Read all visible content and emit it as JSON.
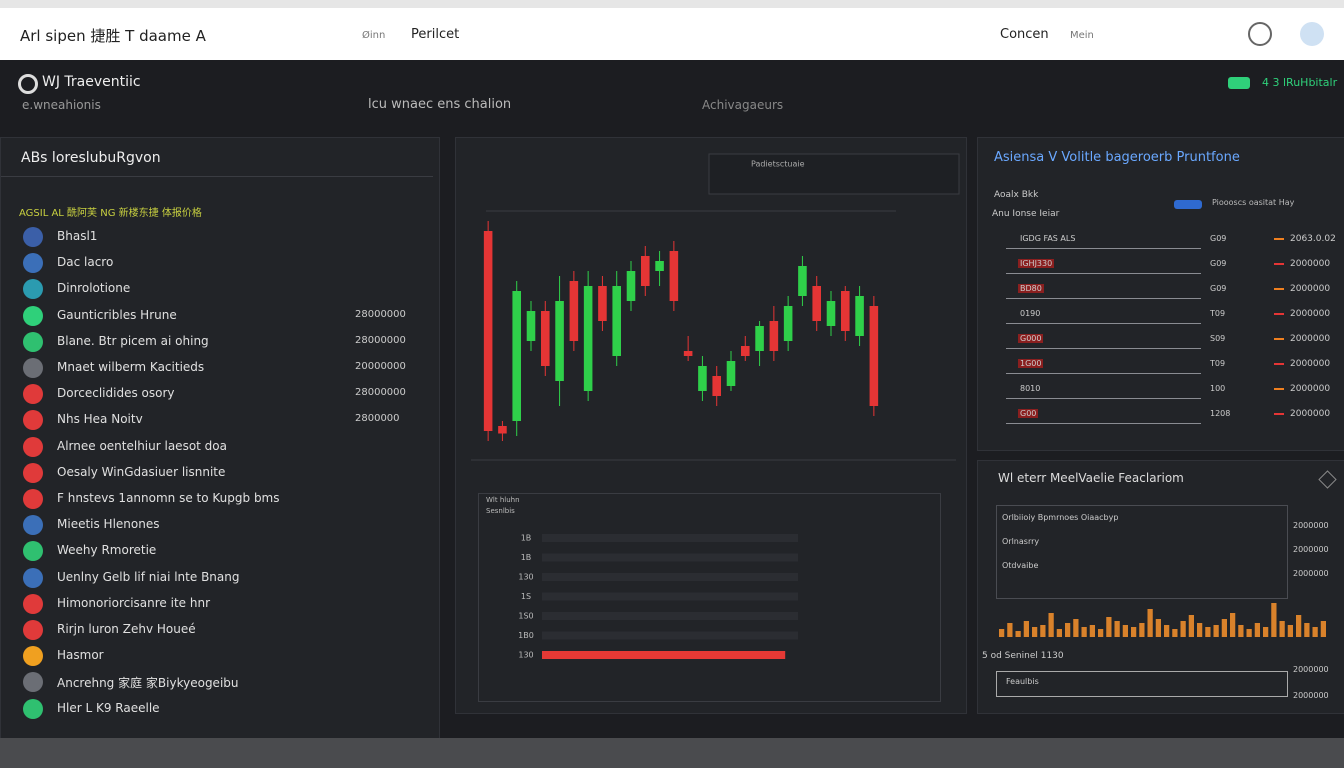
{
  "topbar": {
    "brand": "Arl sipen 捷胜 T daame A",
    "nav": [
      "Øinn",
      "Perilcet"
    ],
    "right": [
      "Concen",
      "Mein"
    ]
  },
  "header": {
    "title": "WJ Traeventiic",
    "subtitle": "e.wneahionis",
    "breadcrumb": "lcu wnaec ens chalion",
    "tab": "Achivagaeurs",
    "status": "4 3 lRuHbitalr"
  },
  "left_panel": {
    "title": "ABs loreslubuRgvon",
    "subtitle": "AGSIL AL 酰阿芙 NG 新楼东捷 体报价格",
    "items": [
      {
        "name": "Bhasl1",
        "color": "#3b5fa8"
      },
      {
        "name": "Dac lacro",
        "color": "#3b6fb8"
      },
      {
        "name": "Dinrolotione",
        "color": "#2b9bb0"
      },
      {
        "name": "Gaunticribles Hrune",
        "value": "28000000",
        "color": "#2fd07a"
      },
      {
        "name": "Blane. Btr picem ai ohing",
        "value": "28000000",
        "color": "#2fc070"
      },
      {
        "name": "Mnaet wilberm Kacitieds",
        "value": "20000000",
        "color": "#6b6e75"
      },
      {
        "name": "Dorceclidides osory",
        "value": "28000000",
        "color": "#e03a3a"
      },
      {
        "name": "Nhs Hea Noitv",
        "value": "2800000",
        "color": "#e03a3a"
      },
      {
        "name": "Alrnee oentelhiur laesot doa",
        "color": "#e03a3a"
      },
      {
        "name": "Oesaly WinGdasiuer lisnnite",
        "color": "#e03a3a"
      },
      {
        "name": "F hnstevs 1annomn se to Kupgb bms",
        "color": "#e03a3a"
      },
      {
        "name": "Mieetis Hlenones",
        "color": "#3b6fb8"
      },
      {
        "name": "Weehy Rmoretie",
        "color": "#2fc070"
      },
      {
        "name": "Uenlny Gelb lif niai lnte Bnang",
        "color": "#3b6fb8"
      },
      {
        "name": "Himonoriorcisanre ite hnr",
        "color": "#e03a3a"
      },
      {
        "name": "Rirjn luron Zehv Houeé",
        "color": "#e03a3a"
      },
      {
        "name": "Hasmor",
        "color": "#f0a020"
      },
      {
        "name": "Ancrehng 家庭 家Biykyeogeibu",
        "color": "#6b6e75"
      },
      {
        "name": "Hler L K9 Raeelle",
        "color": "#2fc070"
      }
    ]
  },
  "market_panel": {
    "title": "Asiensa V Volitle bageroerb Pruntfone",
    "labels": [
      "Aoalx Bkk",
      "Anu Ionse Ieiar"
    ],
    "legend": "Pioooscs oasitat Hay",
    "rows": [
      [
        "IGDG FAS ALS",
        "G09",
        "2063.0.02"
      ],
      [
        "IGHJ330",
        "G09",
        "2000000"
      ],
      [
        "BD80",
        "G09",
        "2000000"
      ],
      [
        "0190",
        "T09",
        "2000000"
      ],
      [
        "G000",
        "S09",
        "2000000"
      ],
      [
        "1G00",
        "T09",
        "2000000"
      ],
      [
        "8010",
        "100",
        "2000000"
      ],
      [
        "G00",
        "1208",
        "2000000"
      ]
    ]
  },
  "volatility_panel": {
    "title": "Wl eterr MeelVaelie Feaclariom",
    "rows": [
      [
        "Orlbiioiy Bpmrnoes Oiaacbyp",
        "2000000"
      ],
      [
        "Orlnasrry",
        "2000000"
      ],
      [
        "Otdvaibe",
        "2000000"
      ]
    ],
    "footer": "5 od Seninel 1130",
    "footer_rows": [
      [
        "Feaulbis",
        "2000000"
      ],
      [
        "",
        "2000000"
      ]
    ]
  },
  "chart_data": [
    {
      "type": "candlestick",
      "title": "Padietsctuaie",
      "open": [
        88,
        10,
        12,
        44,
        56,
        28,
        68,
        24,
        66,
        38,
        60,
        78,
        72,
        80,
        40,
        24,
        30,
        26,
        42,
        40,
        52,
        44,
        62,
        66,
        50,
        64,
        46,
        58
      ],
      "high": [
        92,
        12,
        68,
        60,
        60,
        70,
        72,
        72,
        70,
        72,
        76,
        82,
        80,
        84,
        46,
        38,
        34,
        40,
        46,
        52,
        58,
        62,
        78,
        70,
        64,
        66,
        66,
        62
      ],
      "low": [
        4,
        4,
        6,
        40,
        30,
        18,
        40,
        20,
        48,
        34,
        56,
        62,
        66,
        56,
        36,
        20,
        18,
        24,
        36,
        34,
        36,
        40,
        58,
        48,
        46,
        44,
        42,
        14
      ],
      "close": [
        8,
        7,
        64,
        56,
        34,
        60,
        44,
        66,
        52,
        66,
        72,
        66,
        76,
        60,
        38,
        34,
        22,
        36,
        38,
        50,
        40,
        58,
        74,
        52,
        60,
        48,
        62,
        18
      ],
      "up_color": "#2fd04a",
      "down_color": "#e53535",
      "ylim": [
        0,
        100
      ]
    },
    {
      "type": "hbar",
      "header": [
        "Wlt hluhn",
        "Sesnlbis"
      ],
      "categories": [
        "1B",
        "1B",
        "130",
        "1S",
        "1S0",
        "1B0",
        "130"
      ],
      "values": [
        80,
        80,
        80,
        80,
        80,
        80,
        76
      ],
      "colors": [
        "#2b2d32",
        "#2b2d32",
        "#2b2d32",
        "#2b2d32",
        "#2b2d32",
        "#2b2d32",
        "#e53935"
      ],
      "xlim": [
        0,
        100
      ]
    },
    {
      "type": "volume",
      "color": "#d9822b",
      "ylim": [
        0,
        100
      ],
      "values": [
        20,
        35,
        15,
        40,
        25,
        30,
        60,
        20,
        35,
        45,
        25,
        30,
        20,
        50,
        40,
        30,
        25,
        35,
        70,
        45,
        30,
        20,
        40,
        55,
        35,
        25,
        30,
        45,
        60,
        30,
        20,
        35,
        25,
        85,
        40,
        30,
        55,
        35,
        25,
        40
      ]
    }
  ]
}
